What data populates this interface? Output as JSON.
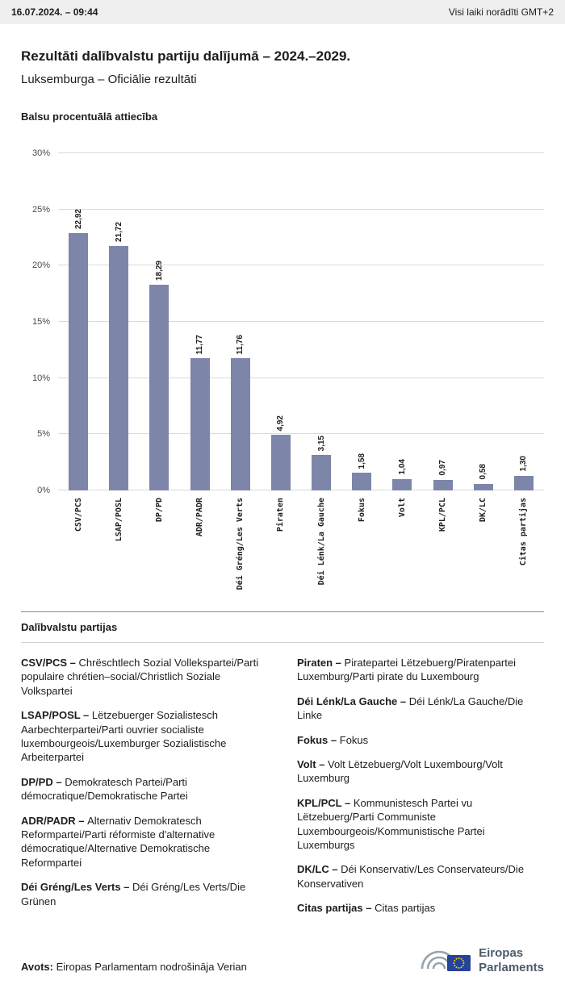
{
  "topbar": {
    "datetime": "16.07.2024. – 09:44",
    "timezone_note": "Visi laiki norādīti GMT+2"
  },
  "header": {
    "title": "Rezultāti dalībvalstu partiju dalījumā – 2024.–2029.",
    "subtitle": "Luksemburga – Oficiālie rezultāti"
  },
  "chart_data": {
    "type": "bar",
    "title": "Balsu procentuālā attiecība",
    "categories": [
      "CSV/PCS",
      "LSAP/POSL",
      "DP/PD",
      "ADR/PADR",
      "Déi Gréng/Les Verts",
      "Piraten",
      "Déi Lénk/La Gauche",
      "Fokus",
      "Volt",
      "KPL/PCL",
      "DK/LC",
      "Citas partijas"
    ],
    "values": [
      22.92,
      21.72,
      18.29,
      11.77,
      11.76,
      4.92,
      3.15,
      1.58,
      1.04,
      0.97,
      0.58,
      1.3
    ],
    "value_labels": [
      "22,92",
      "21,72",
      "18,29",
      "11,77",
      "11,76",
      "4,92",
      "3,15",
      "1,58",
      "1,04",
      "0,97",
      "0,58",
      "1,30"
    ],
    "ylim": [
      0,
      30
    ],
    "yticks": [
      0,
      5,
      10,
      15,
      20,
      25,
      30
    ],
    "ytick_labels": [
      "0%",
      "5%",
      "10%",
      "15%",
      "20%",
      "25%",
      "30%"
    ],
    "bar_color": "#7d85a9",
    "grid": true,
    "legend_position": "none"
  },
  "legend": {
    "heading": "Dalībvalstu partijas",
    "columns": [
      [
        {
          "term": "CSV/PCS –",
          "desc": "Chrëschtlech Sozial Vollekspartei/Parti populaire chrétien–social/Christlich Soziale Volkspartei"
        },
        {
          "term": "LSAP/POSL –",
          "desc": "Lëtzebuerger Sozialistesch Aarbechterpartei/Parti ouvrier socialiste luxembourgeois/Luxemburger Sozialistische Arbeiterpartei"
        },
        {
          "term": "DP/PD –",
          "desc": "Demokratesch Partei/Parti démocratique/Demokratische Partei"
        },
        {
          "term": "ADR/PADR –",
          "desc": "Alternativ Demokratesch Reformpartei/Parti réformiste d'alternative démocratique/Alternative Demokratische Reformpartei"
        },
        {
          "term": "Déi Gréng/Les Verts –",
          "desc": "Déi Gréng/Les Verts/Die Grünen"
        }
      ],
      [
        {
          "term": "Piraten –",
          "desc": "Piratepartei Lëtzebuerg/Piratenpartei Luxemburg/Parti pirate du Luxembourg"
        },
        {
          "term": "Déi Lénk/La Gauche –",
          "desc": "Déi Lénk/La Gauche/Die Linke"
        },
        {
          "term": "Fokus –",
          "desc": "Fokus"
        },
        {
          "term": "Volt –",
          "desc": "Volt Lëtzebuerg/Volt Luxembourg/Volt Luxemburg"
        },
        {
          "term": "KPL/PCL –",
          "desc": "Kommunistesch Partei vu Lëtzebuerg/Parti Communiste Luxembourgeois/Kommunistische Partei Luxemburgs"
        },
        {
          "term": "DK/LC –",
          "desc": "Déi Konservativ/Les Conservateurs/Die Konservativen"
        },
        {
          "term": "Citas partijas –",
          "desc": "Citas partijas"
        }
      ]
    ]
  },
  "footer": {
    "source_label": "Avots:",
    "source_text": "Eiropas Parlamentam nodrošināja Verian"
  },
  "logo": {
    "line1": "Eiropas",
    "line2": "Parlaments"
  }
}
